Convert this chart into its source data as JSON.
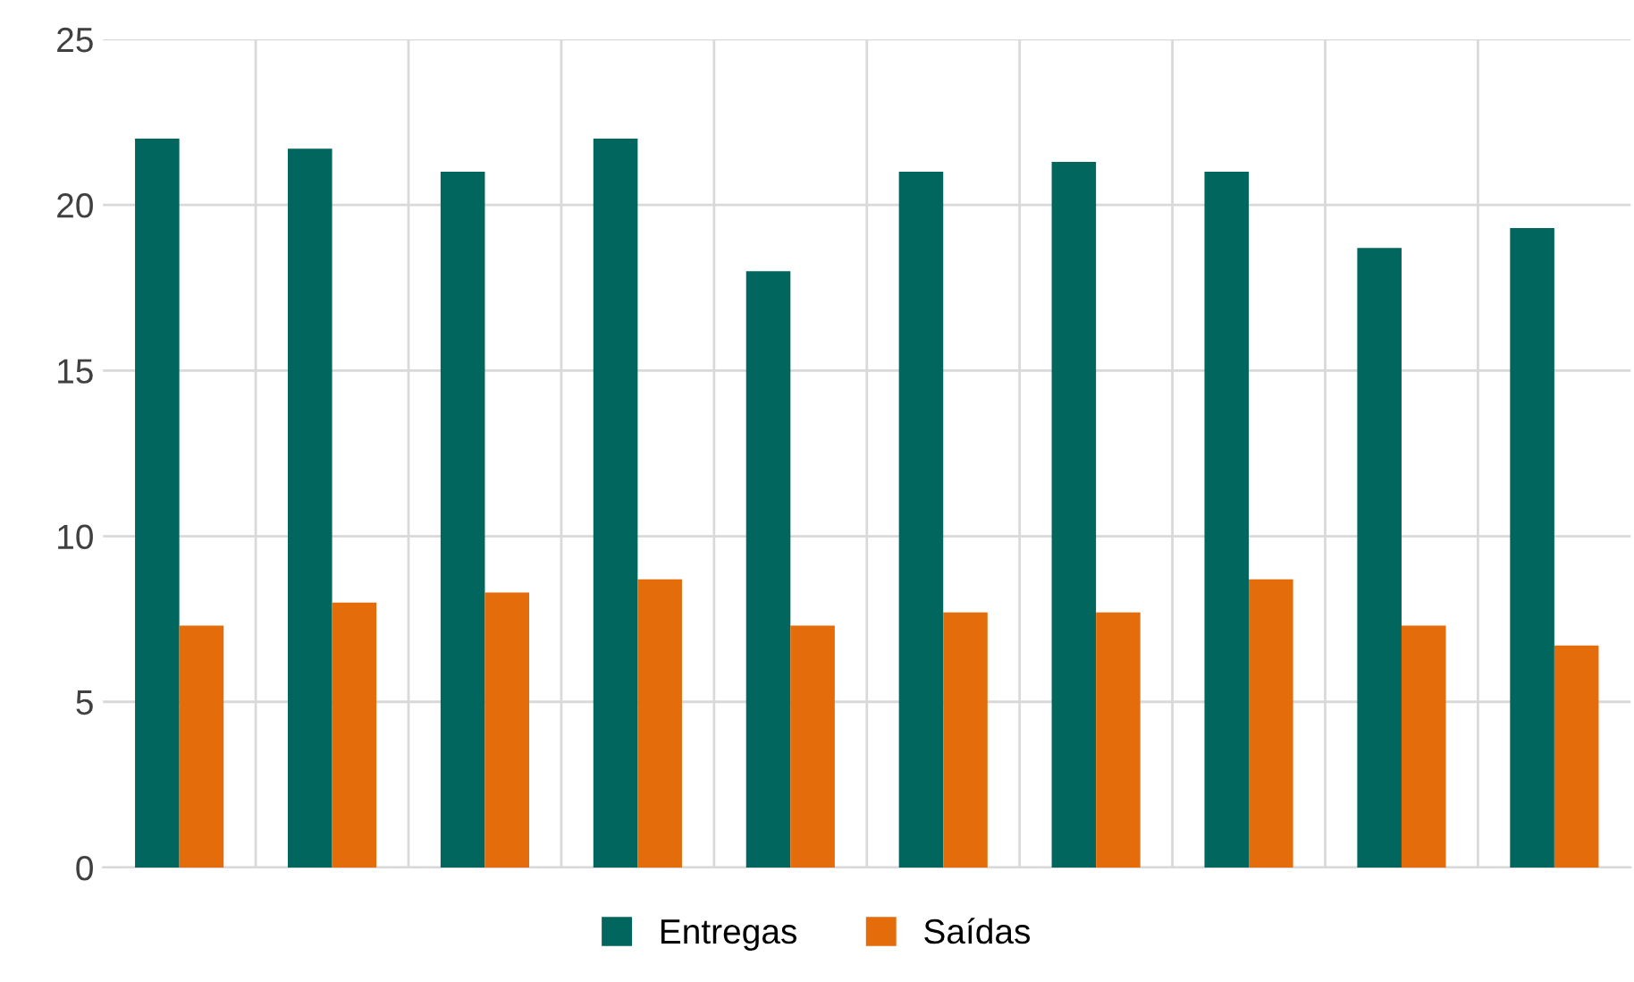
{
  "chart_data": {
    "type": "bar",
    "categories": [
      null,
      null,
      null,
      null,
      null,
      null,
      null,
      null,
      null,
      null
    ],
    "series": [
      {
        "name": "Entregas",
        "color": "#00665e",
        "values": [
          22,
          21.7,
          21,
          22,
          18,
          21,
          21.3,
          21,
          18.7,
          19.3
        ]
      },
      {
        "name": "Saídas",
        "color": "#e46c0a",
        "values": [
          7.3,
          8,
          8.3,
          8.7,
          7.3,
          7.7,
          7.7,
          8.7,
          7.3,
          6.7
        ]
      }
    ],
    "ylim": [
      0,
      25
    ],
    "yticks": [
      0,
      5,
      10,
      15,
      20,
      25
    ],
    "grid": true,
    "legend": "bottom"
  }
}
